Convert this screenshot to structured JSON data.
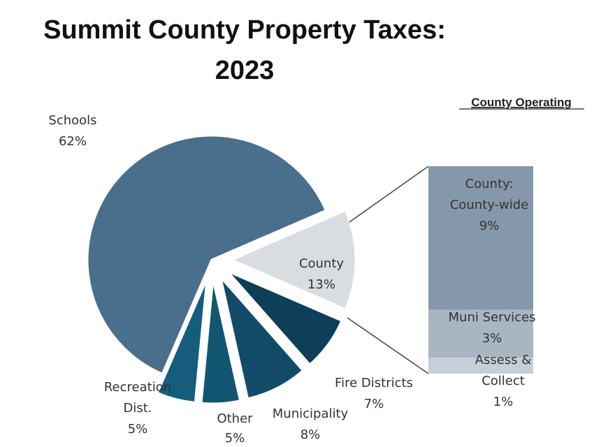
{
  "chart_data": {
    "type": "pie",
    "subtype": "bar-of-pie",
    "title_line1": "Summit County Property Taxes:",
    "title_line2": "2023",
    "slices": [
      {
        "label": "County",
        "value": 13,
        "pct_label": "13%",
        "color": "#d9dde2"
      },
      {
        "label": "Fire Districts",
        "value": 7,
        "pct_label": "7%",
        "color": "#0e3f58"
      },
      {
        "label": "Municipality",
        "value": 8,
        "pct_label": "8%",
        "color": "#124b67"
      },
      {
        "label": "Other",
        "value": 5,
        "pct_label": "5%",
        "color": "#135672"
      },
      {
        "label": "Recreation Dist.",
        "value": 5,
        "pct_label": "5%",
        "color": "#165c7d"
      },
      {
        "label": "Schools",
        "value": 62,
        "pct_label": "62%",
        "color": "#4a6f8c"
      }
    ],
    "breakout": {
      "title": "County Operating",
      "of_slice": "County",
      "segments": [
        {
          "label": "County: County-wide",
          "value": 9,
          "pct_label": "9%",
          "color": "#8598ab"
        },
        {
          "label": "Muni Services",
          "value": 3,
          "pct_label": "3%",
          "color": "#a8b5c3"
        },
        {
          "label": "Assess & Collect",
          "value": 1,
          "pct_label": "1%",
          "color": "#c6ced8"
        }
      ]
    }
  }
}
